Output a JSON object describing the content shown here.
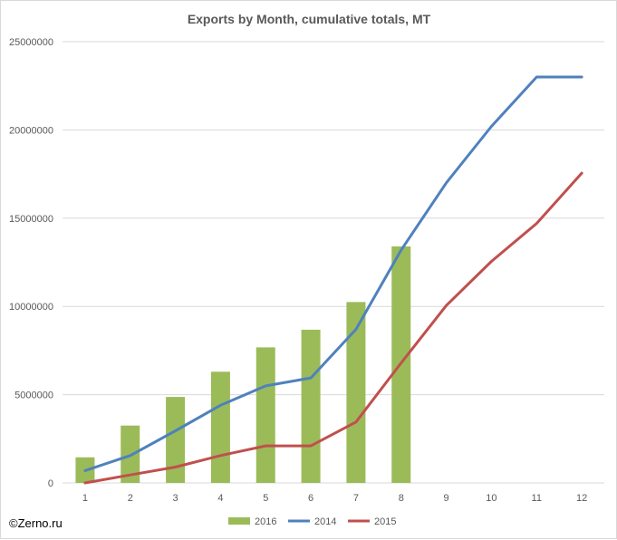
{
  "credit": "©Zerno.ru",
  "chart_data": {
    "type": "bar",
    "title": "Exports by Month, cumulative totals, MT",
    "xlabel": "",
    "ylabel": "",
    "categories": [
      "1",
      "2",
      "3",
      "4",
      "5",
      "6",
      "7",
      "8",
      "9",
      "10",
      "11",
      "12"
    ],
    "ylim": [
      0,
      25000000
    ],
    "yticks": [
      "0",
      "5000000",
      "10000000",
      "15000000",
      "20000000",
      "25000000"
    ],
    "grid": true,
    "legend_position": "bottom",
    "series": [
      {
        "name": "2016",
        "type": "bar",
        "color": "#9bbb59",
        "values": [
          1450000,
          3250000,
          4870000,
          6300000,
          7680000,
          8680000,
          10250000,
          13400000,
          null,
          null,
          null,
          null
        ]
      },
      {
        "name": "2014",
        "type": "line",
        "color": "#4f81bd",
        "values": [
          700000,
          1550000,
          2950000,
          4400000,
          5500000,
          5950000,
          8700000,
          13200000,
          17000000,
          20200000,
          23000000,
          23000000
        ]
      },
      {
        "name": "2015",
        "type": "line",
        "color": "#c0504d",
        "values": [
          0,
          450000,
          900000,
          1550000,
          2100000,
          2100000,
          3450000,
          6800000,
          10050000,
          12550000,
          14700000,
          17550000
        ]
      }
    ]
  }
}
